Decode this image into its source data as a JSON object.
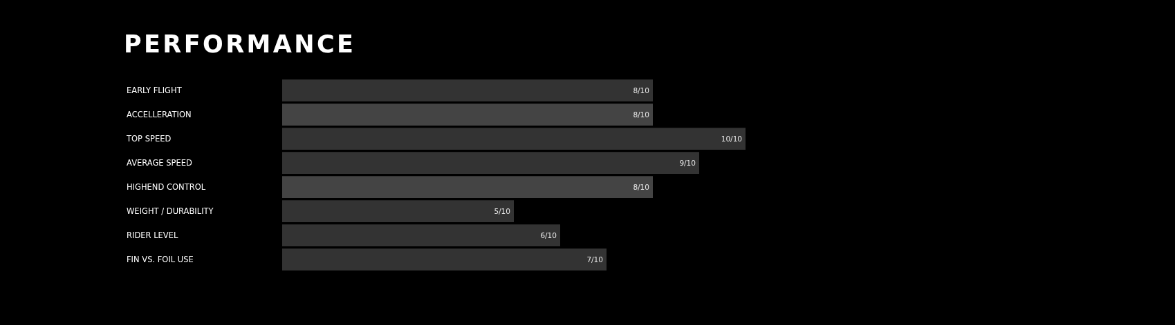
{
  "chart_data": {
    "type": "bar",
    "orientation": "horizontal",
    "title": "PERFORMANCE",
    "categories": [
      "EARLY FLIGHT",
      "ACCELLERATION",
      "TOP SPEED",
      "AVERAGE SPEED",
      "HIGHEND CONTROL",
      "WEIGHT / DURABILITY",
      "RIDER LEVEL",
      "FIN VS. FOIL USE"
    ],
    "values": [
      0.8,
      0.8,
      1.0,
      0.9,
      0.8,
      0.5,
      0.6,
      0.7
    ],
    "colors": [
      "#333333",
      "#444444",
      "#333333",
      "#333333",
      "#444444",
      "#333333",
      "#333333",
      "#333333"
    ],
    "value_labels": [
      "8/10",
      "8/10",
      "10/10",
      "9/10",
      "8/10",
      "5/10",
      "6/10",
      "7/10"
    ],
    "xlim": [
      0,
      1
    ],
    "tick_labels": "y"
  }
}
